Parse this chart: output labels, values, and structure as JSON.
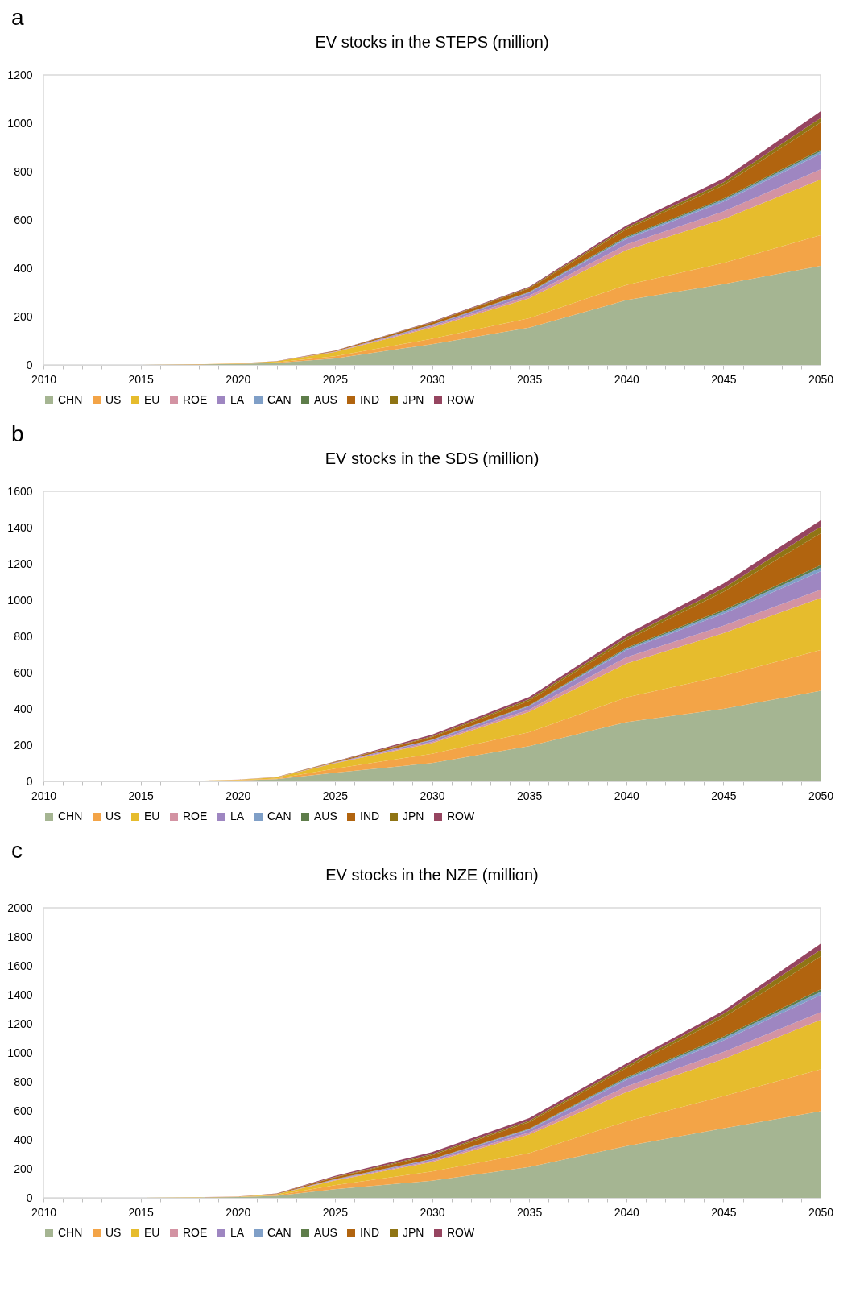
{
  "chart_data": [
    {
      "type": "area",
      "title": "EV stocks in the STEPS (million)",
      "annotations": [
        "a"
      ],
      "stacked": true,
      "legend": "bottom",
      "grid": false,
      "x": [
        2010,
        2015,
        2018,
        2020,
        2022,
        2025,
        2030,
        2035,
        2040,
        2045,
        2050
      ],
      "xlim": [
        2010,
        2050
      ],
      "ylim": [
        0,
        1200
      ],
      "yticks": [
        0,
        200,
        400,
        600,
        800,
        1000,
        1200
      ],
      "xticks": [
        2010,
        {
          "value": 2011,
          "label": null
        },
        {
          "value": 2012,
          "label": null
        },
        {
          "value": 2013,
          "label": null
        },
        {
          "value": 2014,
          "label": null
        },
        2015,
        {
          "value": 2016,
          "label": null
        },
        {
          "value": 2017,
          "label": null
        },
        {
          "value": 2018,
          "label": null
        },
        {
          "value": 2019,
          "label": null
        },
        2020,
        {
          "value": 2021,
          "label": null
        },
        {
          "value": 2022,
          "label": null
        },
        {
          "value": 2023,
          "label": null
        },
        {
          "value": 2024,
          "label": null
        },
        2025,
        {
          "value": 2026,
          "label": null
        },
        {
          "value": 2027,
          "label": null
        },
        {
          "value": 2028,
          "label": null
        },
        {
          "value": 2029,
          "label": null
        },
        2030,
        {
          "value": 2031,
          "label": null
        },
        {
          "value": 2032,
          "label": null
        },
        {
          "value": 2033,
          "label": null
        },
        {
          "value": 2034,
          "label": null
        },
        2035,
        {
          "value": 2036,
          "label": null
        },
        {
          "value": 2037,
          "label": null
        },
        {
          "value": 2038,
          "label": null
        },
        {
          "value": 2039,
          "label": null
        },
        2040,
        {
          "value": 2041,
          "label": null
        },
        {
          "value": 2042,
          "label": null
        },
        {
          "value": 2043,
          "label": null
        },
        {
          "value": 2044,
          "label": null
        },
        2045,
        {
          "value": 2046,
          "label": null
        },
        {
          "value": 2047,
          "label": null
        },
        {
          "value": 2048,
          "label": null
        },
        {
          "value": 2049,
          "label": null
        },
        2050
      ],
      "series": [
        {
          "name": "CHN",
          "color": "#a5b592",
          "values": [
            0,
            0,
            2,
            4,
            8,
            27,
            86,
            154,
            268,
            334,
            410
          ]
        },
        {
          "name": "US",
          "color": "#f3a447",
          "values": [
            0,
            0,
            1,
            2,
            3,
            9,
            22,
            39,
            63,
            88,
            127
          ]
        },
        {
          "name": "EU",
          "color": "#e6bc2d",
          "values": [
            0,
            0,
            0,
            1,
            4,
            17,
            47,
            83,
            144,
            181,
            230
          ]
        },
        {
          "name": "ROE",
          "color": "#d393a3",
          "values": [
            0,
            0,
            0,
            0,
            0,
            2,
            5,
            10,
            23,
            32,
            42
          ]
        },
        {
          "name": "LA",
          "color": "#9e86c1",
          "values": [
            0,
            0,
            0,
            0,
            0,
            1,
            5,
            12,
            23,
            40,
            64
          ]
        },
        {
          "name": "CAN",
          "color": "#7f9fc7",
          "values": [
            0,
            0,
            0,
            0,
            0,
            0,
            1,
            2,
            6,
            8,
            10
          ]
        },
        {
          "name": "AUS",
          "color": "#5e7d4a",
          "values": [
            0,
            0,
            0,
            0,
            0,
            0,
            1,
            2,
            4,
            5,
            7
          ]
        },
        {
          "name": "IND",
          "color": "#b1640f",
          "values": [
            0,
            0,
            0,
            0,
            0,
            2,
            8,
            15,
            30,
            55,
            113
          ]
        },
        {
          "name": "JPN",
          "color": "#8f7414",
          "values": [
            0,
            0,
            0,
            0,
            0,
            0,
            2,
            3,
            7,
            12,
            18
          ]
        },
        {
          "name": "ROW",
          "color": "#964560",
          "values": [
            0,
            0,
            0,
            0,
            1,
            1,
            2,
            3,
            9,
            16,
            28
          ]
        }
      ]
    },
    {
      "type": "area",
      "title": "EV stocks in the SDS (million)",
      "annotations": [
        "b"
      ],
      "stacked": true,
      "legend": "bottom",
      "grid": false,
      "x": [
        2010,
        2015,
        2018,
        2020,
        2022,
        2025,
        2030,
        2035,
        2040,
        2045,
        2050
      ],
      "xlim": [
        2010,
        2050
      ],
      "ylim": [
        0,
        1600
      ],
      "yticks": [
        0,
        200,
        400,
        600,
        800,
        1000,
        1200,
        1400,
        1600
      ],
      "xticks": [
        2010,
        {
          "value": 2011,
          "label": null
        },
        {
          "value": 2012,
          "label": null
        },
        {
          "value": 2013,
          "label": null
        },
        {
          "value": 2014,
          "label": null
        },
        2015,
        {
          "value": 2016,
          "label": null
        },
        {
          "value": 2017,
          "label": null
        },
        {
          "value": 2018,
          "label": null
        },
        {
          "value": 2019,
          "label": null
        },
        2020,
        {
          "value": 2021,
          "label": null
        },
        {
          "value": 2022,
          "label": null
        },
        {
          "value": 2023,
          "label": null
        },
        {
          "value": 2024,
          "label": null
        },
        2025,
        {
          "value": 2026,
          "label": null
        },
        {
          "value": 2027,
          "label": null
        },
        {
          "value": 2028,
          "label": null
        },
        {
          "value": 2029,
          "label": null
        },
        2030,
        {
          "value": 2031,
          "label": null
        },
        {
          "value": 2032,
          "label": null
        },
        {
          "value": 2033,
          "label": null
        },
        {
          "value": 2034,
          "label": null
        },
        2035,
        {
          "value": 2036,
          "label": null
        },
        {
          "value": 2037,
          "label": null
        },
        {
          "value": 2038,
          "label": null
        },
        {
          "value": 2039,
          "label": null
        },
        2040,
        {
          "value": 2041,
          "label": null
        },
        {
          "value": 2042,
          "label": null
        },
        {
          "value": 2043,
          "label": null
        },
        {
          "value": 2044,
          "label": null
        },
        2045,
        {
          "value": 2046,
          "label": null
        },
        {
          "value": 2047,
          "label": null
        },
        {
          "value": 2048,
          "label": null
        },
        {
          "value": 2049,
          "label": null
        },
        2050
      ],
      "series": [
        {
          "name": "CHN",
          "color": "#a5b592",
          "values": [
            0,
            0,
            2,
            5,
            12,
            48,
            101,
            194,
            327,
            400,
            500
          ]
        },
        {
          "name": "US",
          "color": "#f3a447",
          "values": [
            0,
            0,
            1,
            2,
            4,
            22,
            51,
            77,
            136,
            182,
            225
          ]
        },
        {
          "name": "EU",
          "color": "#e6bc2d",
          "values": [
            0,
            0,
            1,
            2,
            6,
            30,
            59,
            112,
            187,
            236,
            287
          ]
        },
        {
          "name": "ROE",
          "color": "#d393a3",
          "values": [
            0,
            0,
            0,
            1,
            1,
            2,
            7,
            13,
            35,
            41,
            45
          ]
        },
        {
          "name": "LA",
          "color": "#9e86c1",
          "values": [
            0,
            0,
            0,
            0,
            0,
            2,
            9,
            18,
            38,
            65,
            102
          ]
        },
        {
          "name": "CAN",
          "color": "#7f9fc7",
          "values": [
            0,
            0,
            0,
            0,
            0,
            1,
            2,
            3,
            8,
            13,
            20
          ]
        },
        {
          "name": "AUS",
          "color": "#5e7d4a",
          "values": [
            0,
            0,
            0,
            0,
            0,
            0,
            1,
            2,
            6,
            9,
            14
          ]
        },
        {
          "name": "IND",
          "color": "#b1640f",
          "values": [
            0,
            0,
            0,
            0,
            1,
            3,
            15,
            25,
            42,
            100,
            175
          ]
        },
        {
          "name": "JPN",
          "color": "#8f7414",
          "values": [
            0,
            0,
            0,
            0,
            0,
            1,
            4,
            9,
            14,
            20,
            37
          ]
        },
        {
          "name": "ROW",
          "color": "#964560",
          "values": [
            0,
            0,
            0,
            0,
            1,
            1,
            9,
            13,
            18,
            25,
            35
          ]
        }
      ]
    },
    {
      "type": "area",
      "title": "EV stocks in the NZE (million)",
      "annotations": [
        "c"
      ],
      "stacked": true,
      "legend": "bottom",
      "grid": false,
      "x": [
        2010,
        2015,
        2018,
        2020,
        2022,
        2025,
        2030,
        2035,
        2040,
        2045,
        2050
      ],
      "xlim": [
        2010,
        2050
      ],
      "ylim": [
        0,
        2000
      ],
      "yticks": [
        0,
        200,
        400,
        600,
        800,
        1000,
        1200,
        1400,
        1600,
        1800,
        2000
      ],
      "xticks": [
        2010,
        {
          "value": 2011,
          "label": null
        },
        {
          "value": 2012,
          "label": null
        },
        {
          "value": 2013,
          "label": null
        },
        {
          "value": 2014,
          "label": null
        },
        2015,
        {
          "value": 2016,
          "label": null
        },
        {
          "value": 2017,
          "label": null
        },
        {
          "value": 2018,
          "label": null
        },
        {
          "value": 2019,
          "label": null
        },
        2020,
        {
          "value": 2021,
          "label": null
        },
        {
          "value": 2022,
          "label": null
        },
        {
          "value": 2023,
          "label": null
        },
        {
          "value": 2024,
          "label": null
        },
        2025,
        {
          "value": 2026,
          "label": null
        },
        {
          "value": 2027,
          "label": null
        },
        {
          "value": 2028,
          "label": null
        },
        {
          "value": 2029,
          "label": null
        },
        2030,
        {
          "value": 2031,
          "label": null
        },
        {
          "value": 2032,
          "label": null
        },
        {
          "value": 2033,
          "label": null
        },
        {
          "value": 2034,
          "label": null
        },
        2035,
        {
          "value": 2036,
          "label": null
        },
        {
          "value": 2037,
          "label": null
        },
        {
          "value": 2038,
          "label": null
        },
        {
          "value": 2039,
          "label": null
        },
        2040,
        {
          "value": 2041,
          "label": null
        },
        {
          "value": 2042,
          "label": null
        },
        {
          "value": 2043,
          "label": null
        },
        {
          "value": 2044,
          "label": null
        },
        2045,
        {
          "value": 2046,
          "label": null
        },
        {
          "value": 2047,
          "label": null
        },
        {
          "value": 2048,
          "label": null
        },
        {
          "value": 2049,
          "label": null
        },
        2050
      ],
      "series": [
        {
          "name": "CHN",
          "color": "#a5b592",
          "values": [
            0,
            0,
            2,
            5,
            14,
            60,
            118,
            212,
            357,
            479,
            597
          ]
        },
        {
          "name": "US",
          "color": "#f3a447",
          "values": [
            0,
            0,
            1,
            2,
            4,
            27,
            64,
            97,
            170,
            223,
            289
          ]
        },
        {
          "name": "EU",
          "color": "#e6bc2d",
          "values": [
            0,
            0,
            1,
            2,
            7,
            32,
            65,
            127,
            202,
            255,
            341
          ]
        },
        {
          "name": "ROE",
          "color": "#d393a3",
          "values": [
            0,
            0,
            0,
            1,
            1,
            4,
            8,
            14,
            39,
            48,
            53
          ]
        },
        {
          "name": "LA",
          "color": "#9e86c1",
          "values": [
            0,
            0,
            0,
            0,
            1,
            4,
            10,
            20,
            44,
            80,
            119
          ]
        },
        {
          "name": "CAN",
          "color": "#7f9fc7",
          "values": [
            0,
            0,
            0,
            0,
            0,
            1,
            2,
            4,
            12,
            17,
            22
          ]
        },
        {
          "name": "AUS",
          "color": "#5e7d4a",
          "values": [
            0,
            0,
            0,
            0,
            0,
            1,
            1,
            3,
            7,
            11,
            16
          ]
        },
        {
          "name": "IND",
          "color": "#b1640f",
          "values": [
            0,
            0,
            0,
            0,
            2,
            12,
            25,
            45,
            63,
            130,
            227
          ]
        },
        {
          "name": "JPN",
          "color": "#8f7414",
          "values": [
            0,
            0,
            0,
            0,
            0,
            3,
            8,
            10,
            14,
            25,
            46
          ]
        },
        {
          "name": "ROW",
          "color": "#964560",
          "values": [
            0,
            0,
            0,
            0,
            1,
            8,
            14,
            18,
            18,
            22,
            43
          ]
        }
      ]
    }
  ]
}
